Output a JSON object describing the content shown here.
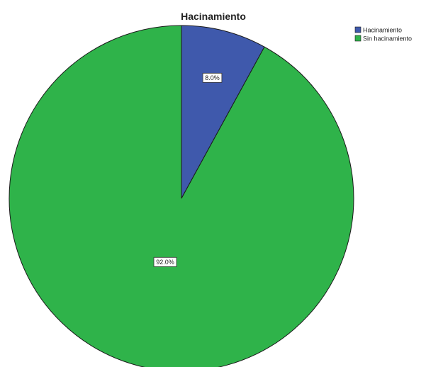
{
  "chart_data": {
    "type": "pie",
    "title": "Hacinamiento",
    "categories": [
      "Hacinamiento",
      "Sin hacinamiento"
    ],
    "values": [
      8.0,
      92.0
    ],
    "data_labels": [
      "8.0%",
      "92.0%"
    ],
    "colors": [
      "#3f59ac",
      "#2fb34a"
    ],
    "legend": {
      "placement": "top-right",
      "entries": [
        "Hacinamiento",
        "Sin hacinamiento"
      ]
    }
  }
}
